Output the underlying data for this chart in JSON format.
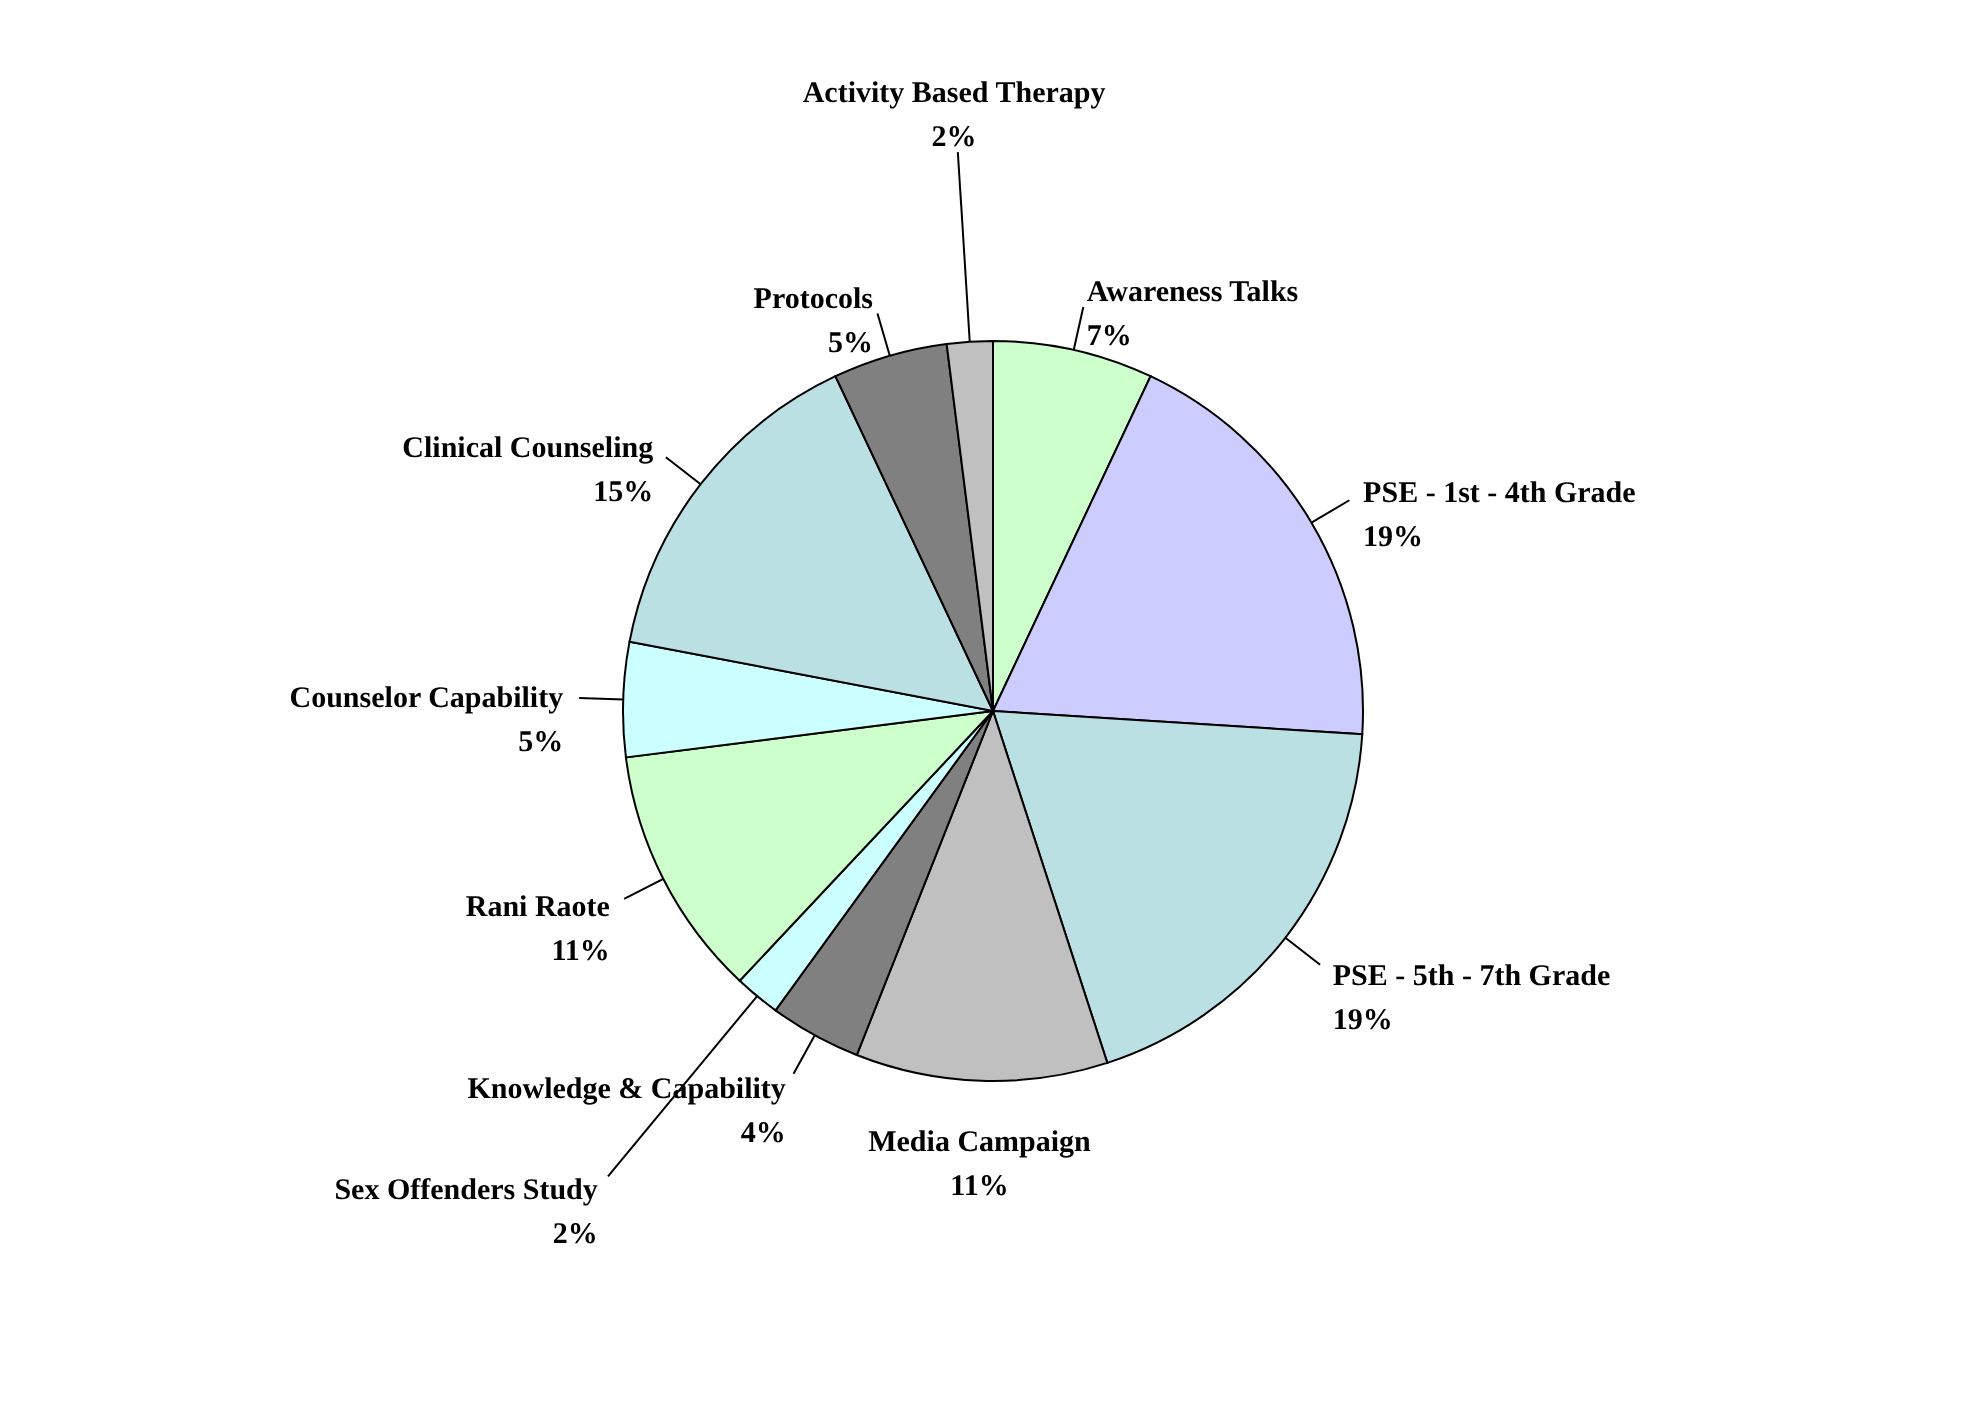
{
  "chart_data": {
    "type": "pie",
    "categories": [
      "Awareness Talks",
      "PSE - 1st - 4th Grade",
      "PSE - 5th - 7th Grade",
      "Media Campaign",
      "Knowledge & Capability",
      "Sex Offenders Study",
      "Rani Raote",
      "Counselor Capability",
      "Clinical Counseling",
      "Protocols",
      "Activity Based Therapy"
    ],
    "values": [
      7,
      19,
      19,
      11,
      4,
      2,
      11,
      5,
      15,
      5,
      2
    ],
    "value_labels": [
      "7%",
      "19%",
      "19%",
      "11%",
      "4%",
      "2%",
      "11%",
      "5%",
      "15%",
      "5%",
      "2%"
    ],
    "colors": [
      "#ccffcc",
      "#ccccff",
      "#bbe0e3",
      "#c0c0c0",
      "#808080",
      "#ccffff",
      "#ccffcc",
      "#ccffff",
      "#bbe0e3",
      "#808080",
      "#c0c0c0"
    ]
  }
}
